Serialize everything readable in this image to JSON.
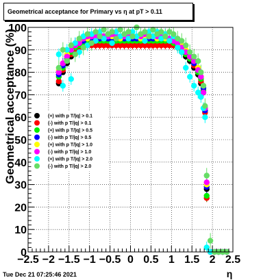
{
  "title": "Geometrical acceptance for Primary vs   η at pT > 0.11",
  "footer": "Tue Dec 21 07:25:46 2021",
  "chart_data": {
    "type": "scatter",
    "xlabel": "η",
    "ylabel": "Geometrical acceptance (%)",
    "xlim": [
      -2.5,
      2.5
    ],
    "ylim": [
      0,
      100
    ],
    "xticks": [
      "−2.5",
      "−2",
      "−1.5",
      "−1",
      "−0.5",
      "0",
      "0.5",
      "1",
      "1.5",
      "2",
      "2.5"
    ],
    "yticks": [
      "0",
      "10",
      "20",
      "30",
      "40",
      "50",
      "60",
      "70",
      "80",
      "90",
      "100"
    ],
    "grid": true,
    "legend_position": "left-middle",
    "series": [
      {
        "name": "(+) with p T/|q| > 0.1",
        "color": "#000000",
        "x": [
          -1.75,
          -1.65,
          -1.55,
          -1.45,
          -1.35,
          -1.25,
          -1.15,
          -1.05,
          -0.95,
          -0.85,
          -0.75,
          -0.65,
          -0.55,
          -0.45,
          -0.35,
          -0.25,
          -0.15,
          -0.05,
          0.05,
          0.15,
          0.25,
          0.35,
          0.45,
          0.55,
          0.65,
          0.75,
          0.85,
          0.95,
          1.05,
          1.15,
          1.25,
          1.35,
          1.45,
          1.55,
          1.65,
          1.72,
          1.78,
          1.82,
          1.86,
          1.95,
          2.05,
          2.15,
          2.25,
          2.35
        ],
        "y": [
          75,
          80,
          84,
          87,
          89,
          91,
          92,
          93,
          93,
          93,
          93,
          93,
          93,
          93,
          93,
          93,
          93,
          93,
          93,
          93,
          93,
          93,
          93,
          93,
          93,
          93,
          93,
          93,
          92,
          91,
          89,
          87,
          85,
          82,
          79,
          75,
          71,
          63,
          28,
          0,
          0,
          0,
          0,
          0
        ]
      },
      {
        "name": "(-) with p T/|q| > 0.1",
        "color": "#ff0000",
        "x": [
          -1.75,
          -1.65,
          -1.55,
          -1.45,
          -1.35,
          -1.25,
          -1.15,
          -1.05,
          -0.95,
          -0.85,
          -0.75,
          -0.65,
          -0.55,
          -0.45,
          -0.35,
          -0.25,
          -0.15,
          -0.05,
          0.05,
          0.15,
          0.25,
          0.35,
          0.45,
          0.55,
          0.65,
          0.75,
          0.85,
          0.95,
          1.05,
          1.15,
          1.25,
          1.35,
          1.45,
          1.55,
          1.65,
          1.72,
          1.78,
          1.82,
          1.86,
          1.95,
          2.05,
          2.15,
          2.25,
          2.35
        ],
        "y": [
          76,
          81,
          85,
          88,
          90,
          91,
          92,
          92,
          92,
          92,
          92,
          92,
          92,
          92,
          92,
          92,
          92,
          92,
          92,
          92,
          92,
          92,
          92,
          92,
          92,
          92,
          92,
          92,
          92,
          91,
          90,
          88,
          86,
          83,
          80,
          76,
          72,
          62,
          24,
          0,
          0,
          0,
          0,
          0
        ]
      },
      {
        "name": "(+) with p T/|q| > 0.5",
        "color": "#00ee00",
        "x": [
          -1.75,
          -1.65,
          -1.55,
          -1.45,
          -1.35,
          -1.25,
          -1.15,
          -1.05,
          -0.95,
          -0.85,
          -0.75,
          -0.65,
          -0.55,
          -0.45,
          -0.35,
          -0.25,
          -0.15,
          -0.05,
          0.05,
          0.15,
          0.25,
          0.35,
          0.45,
          0.55,
          0.65,
          0.75,
          0.85,
          0.95,
          1.05,
          1.15,
          1.25,
          1.35,
          1.45,
          1.55,
          1.65,
          1.72,
          1.78,
          1.82,
          1.86,
          1.95,
          2.05,
          2.15,
          2.25,
          2.35
        ],
        "y": [
          78,
          82,
          86,
          89,
          91,
          92,
          93,
          94,
          94,
          94,
          94,
          94,
          94,
          94,
          94,
          94,
          94,
          94,
          94,
          94,
          94,
          94,
          94,
          94,
          94,
          94,
          94,
          94,
          93,
          92,
          90,
          88,
          86,
          84,
          80,
          77,
          72,
          64,
          25,
          0,
          0,
          0,
          0,
          0
        ]
      },
      {
        "name": "(-) with p T/|q| > 0.5",
        "color": "#0000ff",
        "x": [
          -1.75,
          -1.65,
          -1.55,
          -1.45,
          -1.35,
          -1.25,
          -1.15,
          -1.05,
          -0.95,
          -0.85,
          -0.75,
          -0.65,
          -0.55,
          -0.45,
          -0.35,
          -0.25,
          -0.15,
          -0.05,
          0.05,
          0.15,
          0.25,
          0.35,
          0.45,
          0.55,
          0.65,
          0.75,
          0.85,
          0.95,
          1.05,
          1.15,
          1.25,
          1.35,
          1.45,
          1.55,
          1.65,
          1.72,
          1.78,
          1.82,
          1.86,
          1.95,
          2.05,
          2.15,
          2.25,
          2.35
        ],
        "y": [
          79,
          83,
          87,
          90,
          92,
          93,
          94,
          95,
          95,
          95,
          95,
          95,
          95,
          95,
          95,
          95,
          95,
          95,
          95,
          95,
          95,
          95,
          95,
          95,
          95,
          95,
          95,
          95,
          94,
          93,
          91,
          89,
          87,
          84,
          81,
          78,
          73,
          63,
          29,
          0,
          0,
          0,
          0,
          0
        ]
      },
      {
        "name": "(+) with p T/|q| > 1.0",
        "color": "#ffff00",
        "x": [
          -1.75,
          -1.65,
          -1.55,
          -1.45,
          -1.35,
          -1.25,
          -1.15,
          -1.05,
          -0.95,
          -0.85,
          -0.75,
          -0.65,
          -0.55,
          -0.45,
          -0.35,
          -0.25,
          -0.15,
          -0.05,
          0.05,
          0.15,
          0.25,
          0.35,
          0.45,
          0.55,
          0.65,
          0.75,
          0.85,
          0.95,
          1.05,
          1.15,
          1.25,
          1.35,
          1.45,
          1.55,
          1.65,
          1.72,
          1.78,
          1.82,
          1.86,
          1.95,
          2.05,
          2.15,
          2.25,
          2.35
        ],
        "y": [
          81,
          84,
          88,
          90,
          92,
          94,
          95,
          95,
          96,
          96,
          96,
          95,
          96,
          96,
          96,
          95,
          96,
          96,
          96,
          96,
          95,
          96,
          96,
          96,
          95,
          96,
          95,
          95,
          95,
          94,
          92,
          90,
          87,
          85,
          82,
          78,
          74,
          64,
          30,
          0,
          0,
          0,
          0,
          0
        ]
      },
      {
        "name": "(-) with p T/|q| > 1.0",
        "color": "#ff00ff",
        "x": [
          -1.75,
          -1.65,
          -1.55,
          -1.45,
          -1.35,
          -1.25,
          -1.15,
          -1.05,
          -0.95,
          -0.85,
          -0.75,
          -0.65,
          -0.55,
          -0.45,
          -0.35,
          -0.25,
          -0.15,
          -0.05,
          0.05,
          0.15,
          0.25,
          0.35,
          0.45,
          0.55,
          0.65,
          0.75,
          0.85,
          0.95,
          1.05,
          1.15,
          1.25,
          1.35,
          1.45,
          1.55,
          1.65,
          1.72,
          1.78,
          1.82,
          1.86,
          1.95,
          2.05,
          2.15,
          2.25,
          2.35
        ],
        "y": [
          80,
          84,
          87,
          90,
          92,
          93,
          95,
          96,
          96,
          96,
          97,
          96,
          96,
          97,
          96,
          96,
          96,
          97,
          96,
          96,
          96,
          97,
          96,
          96,
          96,
          96,
          96,
          95,
          94,
          93,
          91,
          89,
          87,
          85,
          81,
          78,
          71,
          64,
          31,
          0,
          0,
          0,
          0,
          0
        ]
      },
      {
        "name": "(+) with p T/|q| > 2.0",
        "color": "#00ffff",
        "x": [
          -1.75,
          -1.65,
          -1.55,
          -1.45,
          -1.35,
          -1.25,
          -1.15,
          -1.05,
          -0.95,
          -0.85,
          -0.75,
          -0.65,
          -0.55,
          -0.45,
          -0.35,
          -0.25,
          -0.15,
          -0.05,
          0.05,
          0.15,
          0.25,
          0.35,
          0.45,
          0.55,
          0.65,
          0.75,
          0.85,
          0.95,
          1.05,
          1.15,
          1.25,
          1.35,
          1.45,
          1.55,
          1.65,
          1.72,
          1.78,
          1.82,
          1.86,
          1.95,
          2.05,
          2.15,
          2.25,
          2.35
        ],
        "y": [
          88,
          74,
          90,
          77,
          93,
          89,
          96,
          92,
          97,
          94,
          98,
          95,
          97,
          93,
          98,
          96,
          97,
          95,
          98,
          96,
          97,
          94,
          98,
          96,
          98,
          95,
          97,
          94,
          96,
          91,
          89,
          82,
          78,
          74,
          71,
          69,
          64,
          60,
          2,
          0,
          0,
          0,
          0,
          0
        ]
      },
      {
        "name": "(-) with p T/|q| > 2.0",
        "color": "#66dd66",
        "x": [
          -1.75,
          -1.65,
          -1.55,
          -1.45,
          -1.35,
          -1.25,
          -1.15,
          -1.05,
          -0.95,
          -0.85,
          -0.75,
          -0.65,
          -0.55,
          -0.45,
          -0.35,
          -0.25,
          -0.15,
          -0.05,
          0.05,
          0.15,
          0.25,
          0.35,
          0.45,
          0.55,
          0.65,
          0.75,
          0.85,
          0.95,
          1.05,
          1.15,
          1.25,
          1.35,
          1.45,
          1.55,
          1.65,
          1.72,
          1.78,
          1.82,
          1.86,
          1.95,
          2.05,
          2.15,
          2.25,
          2.35
        ],
        "y": [
          82,
          90,
          85,
          92,
          88,
          95,
          91,
          97,
          93,
          98,
          96,
          99,
          97,
          98,
          95,
          99,
          97,
          98,
          96,
          100,
          97,
          98,
          96,
          99,
          97,
          98,
          96,
          98,
          97,
          95,
          94,
          92,
          89,
          87,
          85,
          80,
          74,
          65,
          34,
          5,
          0,
          0,
          0,
          0
        ]
      }
    ]
  }
}
